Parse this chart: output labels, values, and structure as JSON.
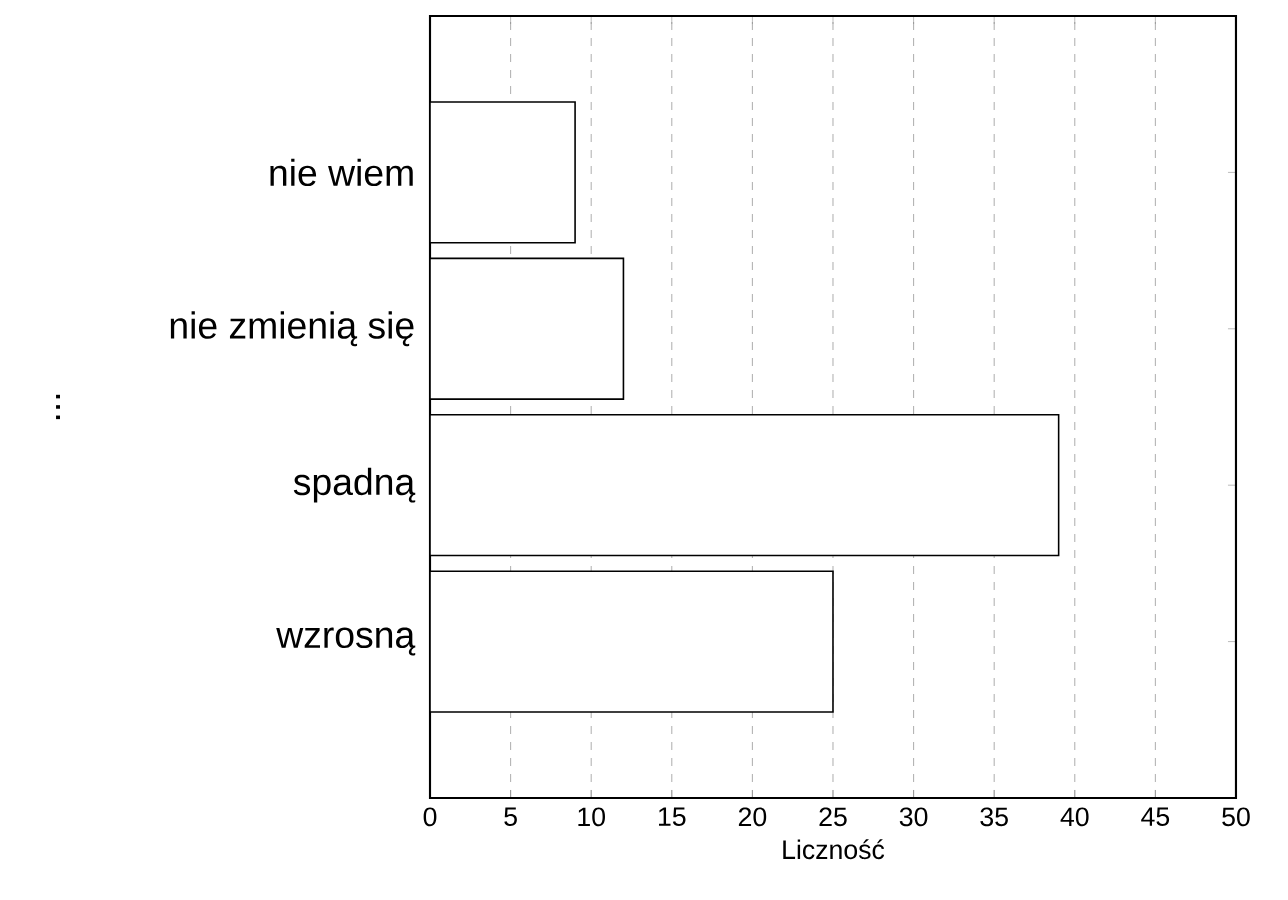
{
  "chart_data": {
    "type": "bar",
    "orientation": "horizontal",
    "categories": [
      "nie wiem",
      "nie zmienią się",
      "spadną",
      "wzrosną"
    ],
    "values": [
      9,
      12,
      39,
      25
    ],
    "color": "#ffffff",
    "xlabel": "Liczność",
    "ylabel": "...",
    "xlim": [
      0,
      50
    ],
    "xticks": [
      0,
      5,
      10,
      15,
      20,
      25,
      30,
      35,
      40,
      45,
      50
    ],
    "grid": "x"
  }
}
